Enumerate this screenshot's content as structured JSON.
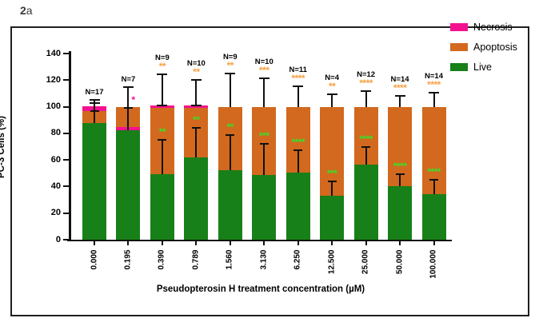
{
  "figure_label": {
    "bold": "2",
    "suffix": "a"
  },
  "colors": {
    "necrosis": "#F4118F",
    "apoptosis": "#D2691E",
    "live": "#188018",
    "star_orange": "#F7A145",
    "star_green": "#3BDD2B",
    "axis": "#111111"
  },
  "legend": {
    "items": [
      {
        "label": "Necrosis",
        "color_key": "necrosis"
      },
      {
        "label": "Apoptosis",
        "color_key": "apoptosis"
      },
      {
        "label": "Live",
        "color_key": "live"
      }
    ]
  },
  "chart_data": {
    "type": "bar",
    "stacked": true,
    "title": "",
    "xlabel": "Pseudopterosin H treatment concentration (µM)",
    "ylabel": "PC-3 Cells (%)",
    "ylim": [
      0,
      140
    ],
    "y_ticks": [
      0,
      20,
      40,
      60,
      80,
      100,
      120,
      140
    ],
    "grid": false,
    "legend_position": "top-right",
    "categories": [
      "0.000",
      "0.195",
      "0.390",
      "0.789",
      "1.560",
      "3.130",
      "6.250",
      "12.500",
      "25.000",
      "50.000",
      "100.000"
    ],
    "series": [
      {
        "name": "Live",
        "values": [
          88,
          82.5,
          49,
          62,
          52.5,
          48.5,
          50.5,
          33,
          56.5,
          40.5,
          34
        ]
      },
      {
        "name": "Necrosis",
        "values": [
          3.5,
          2,
          1.5,
          1.5,
          0,
          0,
          0,
          0,
          0,
          0,
          0
        ]
      },
      {
        "name": "Apoptosis",
        "values": [
          9,
          15.5,
          50.3,
          37.3,
          47.5,
          51.5,
          49.5,
          67,
          43.5,
          59.5,
          66
        ]
      }
    ],
    "n_labels": [
      "N=17",
      "N=7",
      "N=9",
      "N=10",
      "N=9",
      "N=10",
      "N=11",
      "N=4",
      "N=12",
      "N=14",
      "N=14"
    ],
    "bars": [
      {
        "x": "0.000",
        "n": "N=17",
        "segments": [
          {
            "k": "live",
            "v": 88
          },
          {
            "k": "apoptosis",
            "v": 9
          },
          {
            "k": "necrosis",
            "v": 3.5
          }
        ],
        "err": {
          "top": 105,
          "bottom": 89,
          "caps": [
            105,
            102.5
          ]
        },
        "live_err": {
          "from": 88,
          "to": 97
        },
        "sig_top": "",
        "sig_live": "",
        "sig_side": null
      },
      {
        "x": "0.195",
        "n": "N=7",
        "segments": [
          {
            "k": "live",
            "v": 82.5
          },
          {
            "k": "necrosis",
            "v": 2
          },
          {
            "k": "apoptosis",
            "v": 15.5
          }
        ],
        "err": {
          "top": 114.5,
          "bottom": 85,
          "caps": [
            114.5
          ]
        },
        "live_err": {
          "from": 82.5,
          "to": 99
        },
        "sig_top": "",
        "sig_live": "",
        "sig_side": {
          "text": "*",
          "value": 106,
          "dx": 6
        }
      },
      {
        "x": "0.390",
        "n": "N=9",
        "segments": [
          {
            "k": "live",
            "v": 49
          },
          {
            "k": "apoptosis",
            "v": 50.3
          },
          {
            "k": "necrosis",
            "v": 1.5
          }
        ],
        "err": {
          "top": 124.5,
          "bottom": 100.5,
          "caps": [
            124.5,
            101
          ]
        },
        "live_err": {
          "from": 49,
          "to": 75
        },
        "sig_top": "**",
        "sig_live": "**",
        "sig_side": null
      },
      {
        "x": "0.789",
        "n": "N=10",
        "segments": [
          {
            "k": "live",
            "v": 62
          },
          {
            "k": "apoptosis",
            "v": 37.3
          },
          {
            "k": "necrosis",
            "v": 1.5
          }
        ],
        "err": {
          "top": 120,
          "bottom": 101,
          "caps": [
            120,
            101
          ]
        },
        "live_err": {
          "from": 62,
          "to": 84
        },
        "sig_top": "**",
        "sig_live": "**",
        "sig_side": null
      },
      {
        "x": "1.560",
        "n": "N=9",
        "segments": [
          {
            "k": "live",
            "v": 52.5
          },
          {
            "k": "apoptosis",
            "v": 47.5
          }
        ],
        "err": {
          "top": 125,
          "bottom": 100,
          "caps": [
            125
          ]
        },
        "live_err": {
          "from": 52.5,
          "to": 79
        },
        "sig_top": "**",
        "sig_live": "**",
        "sig_side": null
      },
      {
        "x": "3.130",
        "n": "N=10",
        "segments": [
          {
            "k": "live",
            "v": 48.5
          },
          {
            "k": "apoptosis",
            "v": 51.5
          }
        ],
        "err": {
          "top": 121.5,
          "bottom": 100,
          "caps": [
            121.5
          ]
        },
        "live_err": {
          "from": 48.5,
          "to": 72
        },
        "sig_top": "***",
        "sig_live": "***",
        "sig_side": null
      },
      {
        "x": "6.250",
        "n": "N=11",
        "segments": [
          {
            "k": "live",
            "v": 50.5
          },
          {
            "k": "apoptosis",
            "v": 49.5
          }
        ],
        "err": {
          "top": 115.5,
          "bottom": 100,
          "caps": [
            115.5
          ]
        },
        "live_err": {
          "from": 50.5,
          "to": 67.5
        },
        "sig_top": "****",
        "sig_live": "****",
        "sig_side": null
      },
      {
        "x": "12.500",
        "n": "N=4",
        "segments": [
          {
            "k": "live",
            "v": 33
          },
          {
            "k": "apoptosis",
            "v": 67
          }
        ],
        "err": {
          "top": 109.5,
          "bottom": 100,
          "caps": [
            109.5
          ]
        },
        "live_err": {
          "from": 33,
          "to": 44
        },
        "sig_top": "**",
        "sig_live": "***",
        "sig_side": null
      },
      {
        "x": "25.000",
        "n": "N=12",
        "segments": [
          {
            "k": "live",
            "v": 56.5
          },
          {
            "k": "apoptosis",
            "v": 43.5
          }
        ],
        "err": {
          "top": 112,
          "bottom": 100,
          "caps": [
            112
          ]
        },
        "live_err": {
          "from": 56.5,
          "to": 70
        },
        "sig_top": "****",
        "sig_live": "****",
        "sig_side": null
      },
      {
        "x": "50.000",
        "n": "N=14",
        "segments": [
          {
            "k": "live",
            "v": 40.5
          },
          {
            "k": "apoptosis",
            "v": 59.5
          }
        ],
        "err": {
          "top": 108,
          "bottom": 100,
          "caps": [
            108
          ]
        },
        "live_err": {
          "from": 40.5,
          "to": 49
        },
        "sig_top": "****",
        "sig_live": "****",
        "sig_side": null
      },
      {
        "x": "100.000",
        "n": "N=14",
        "segments": [
          {
            "k": "live",
            "v": 34
          },
          {
            "k": "apoptosis",
            "v": 66
          }
        ],
        "err": {
          "top": 110.5,
          "bottom": 100,
          "caps": [
            110.5
          ]
        },
        "live_err": {
          "from": 34,
          "to": 45
        },
        "sig_top": "****",
        "sig_live": "****",
        "sig_side": null
      }
    ]
  }
}
